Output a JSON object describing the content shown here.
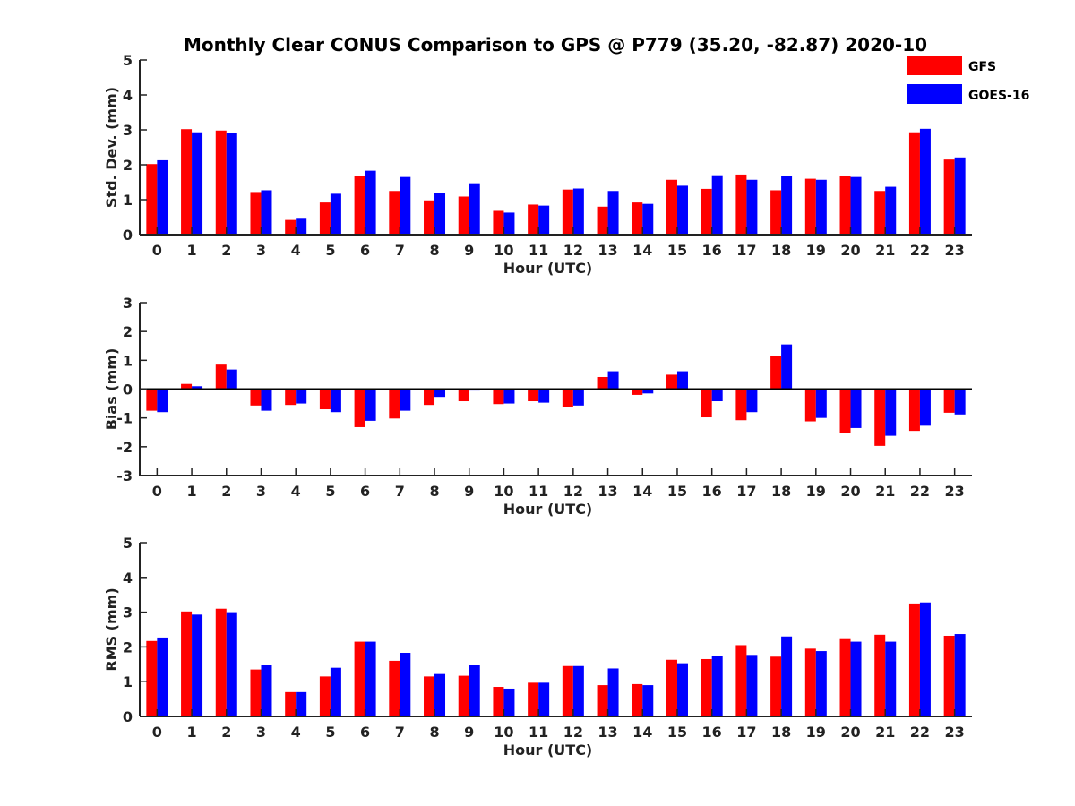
{
  "title": "Monthly Clear CONUS Comparison to GPS @ P779 (35.20, -82.87) 2020-10",
  "legend": {
    "placement": "top-right",
    "entries": [
      {
        "name": "GFS",
        "color": "#ff0000"
      },
      {
        "name": "GOES-16",
        "color": "#0000ff"
      }
    ]
  },
  "chart_data": [
    {
      "type": "bar",
      "title": "Monthly Clear CONUS Comparison to GPS @ P779 (35.20, -82.87) 2020-10",
      "xlabel": "Hour (UTC)",
      "ylabel": "Std. Dev. (mm)",
      "ylim": [
        0,
        5
      ],
      "yticks": [
        0,
        1,
        2,
        3,
        4,
        5
      ],
      "categories": [
        "0",
        "1",
        "2",
        "3",
        "4",
        "5",
        "6",
        "7",
        "8",
        "9",
        "10",
        "11",
        "12",
        "13",
        "14",
        "15",
        "16",
        "17",
        "18",
        "19",
        "20",
        "21",
        "22",
        "23"
      ],
      "series": [
        {
          "name": "GFS",
          "color": "#ff0000",
          "values": [
            2.02,
            3.02,
            2.98,
            1.22,
            0.42,
            0.92,
            1.68,
            1.25,
            0.98,
            1.09,
            0.68,
            0.86,
            1.29,
            0.8,
            0.92,
            1.57,
            1.31,
            1.72,
            1.27,
            1.6,
            1.68,
            1.25,
            2.93,
            2.15
          ]
        },
        {
          "name": "GOES-16",
          "color": "#0000ff",
          "values": [
            2.13,
            2.93,
            2.9,
            1.27,
            0.48,
            1.17,
            1.83,
            1.65,
            1.19,
            1.47,
            0.63,
            0.83,
            1.32,
            1.25,
            0.88,
            1.4,
            1.7,
            1.57,
            1.67,
            1.57,
            1.65,
            1.37,
            3.03,
            2.21
          ]
        }
      ]
    },
    {
      "type": "bar",
      "xlabel": "Hour (UTC)",
      "ylabel": "Bias (mm)",
      "ylim": [
        -3,
        3
      ],
      "yticks": [
        -3,
        -2,
        -1,
        0,
        1,
        2,
        3
      ],
      "categories": [
        "0",
        "1",
        "2",
        "3",
        "4",
        "5",
        "6",
        "7",
        "8",
        "9",
        "10",
        "11",
        "12",
        "13",
        "14",
        "15",
        "16",
        "17",
        "18",
        "19",
        "20",
        "21",
        "22",
        "23"
      ],
      "series": [
        {
          "name": "GFS",
          "color": "#ff0000",
          "values": [
            -0.75,
            0.18,
            0.85,
            -0.57,
            -0.55,
            -0.7,
            -1.32,
            -1.02,
            -0.55,
            -0.42,
            -0.52,
            -0.42,
            -0.63,
            0.42,
            -0.2,
            0.5,
            -0.98,
            -1.08,
            1.15,
            -1.12,
            -1.52,
            -1.97,
            -1.45,
            -0.82
          ]
        },
        {
          "name": "GOES-16",
          "color": "#0000ff",
          "values": [
            -0.8,
            0.1,
            0.68,
            -0.75,
            -0.5,
            -0.8,
            -1.1,
            -0.75,
            -0.27,
            -0.05,
            -0.5,
            -0.47,
            -0.57,
            0.62,
            -0.15,
            0.62,
            -0.42,
            -0.8,
            1.55,
            -1.0,
            -1.35,
            -1.62,
            -1.27,
            -0.88
          ]
        }
      ]
    },
    {
      "type": "bar",
      "xlabel": "Hour (UTC)",
      "ylabel": "RMS (mm)",
      "ylim": [
        0,
        5
      ],
      "yticks": [
        0,
        1,
        2,
        3,
        4,
        5
      ],
      "categories": [
        "0",
        "1",
        "2",
        "3",
        "4",
        "5",
        "6",
        "7",
        "8",
        "9",
        "10",
        "11",
        "12",
        "13",
        "14",
        "15",
        "16",
        "17",
        "18",
        "19",
        "20",
        "21",
        "22",
        "23"
      ],
      "series": [
        {
          "name": "GFS",
          "color": "#ff0000",
          "values": [
            2.17,
            3.02,
            3.1,
            1.35,
            0.7,
            1.15,
            2.15,
            1.6,
            1.15,
            1.17,
            0.85,
            0.97,
            1.45,
            0.9,
            0.93,
            1.63,
            1.65,
            2.05,
            1.72,
            1.95,
            2.25,
            2.35,
            3.25,
            2.32
          ]
        },
        {
          "name": "GOES-16",
          "color": "#0000ff",
          "values": [
            2.27,
            2.93,
            3.0,
            1.48,
            0.7,
            1.4,
            2.15,
            1.83,
            1.22,
            1.48,
            0.8,
            0.97,
            1.45,
            1.38,
            0.9,
            1.53,
            1.75,
            1.77,
            2.3,
            1.88,
            2.15,
            2.15,
            3.28,
            2.37
          ]
        }
      ]
    }
  ]
}
